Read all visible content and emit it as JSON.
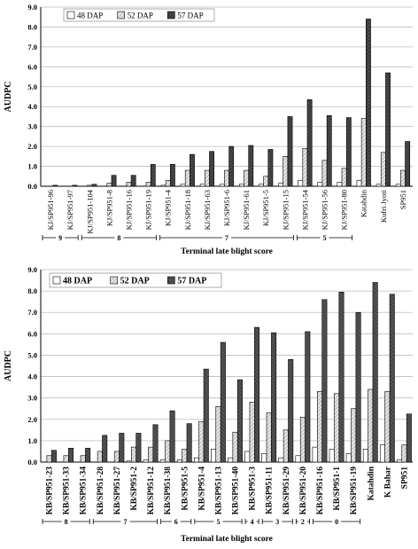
{
  "chart_data": [
    {
      "type": "bar",
      "ylabel": "AUDPC",
      "xlabel": "Terminal late blight score",
      "ylim": [
        0,
        9
      ],
      "yticks": [
        "0.0",
        "1.0",
        "2.0",
        "3.0",
        "4.0",
        "5.0",
        "6.0",
        "7.0",
        "8.0",
        "9.0"
      ],
      "grid": true,
      "legend_position": "top-left",
      "categories": [
        "KJ/SP951-96",
        "KJ/SP951-97",
        "KJ/SP951-104",
        "KJ/SP951-8",
        "KJ/SP951-16",
        "KJ/SP951-19",
        "KJ/SP951-4",
        "KJ/SP951-18",
        "KJ/SP951-63",
        "KJ/SP951-6",
        "KJ/SP951-61",
        "KJ/SP951-5",
        "KJ/SP951-15",
        "KJ/SP951-54",
        "KJ/SP951-56",
        "KJ/SP951-80",
        "Katahdin",
        "Kufri Jyoti",
        "SP951"
      ],
      "series": [
        {
          "name": "48 DAP",
          "values": [
            0.0,
            0.0,
            0.0,
            0.0,
            0.0,
            0.0,
            0.05,
            0.1,
            0.1,
            0.1,
            0.1,
            0.1,
            0.15,
            0.3,
            0.2,
            0.2,
            0.3,
            0.1,
            0.1
          ]
        },
        {
          "name": "52 DAP",
          "values": [
            0.0,
            0.0,
            0.05,
            0.15,
            0.2,
            0.2,
            0.3,
            0.8,
            0.8,
            0.8,
            0.8,
            0.5,
            1.5,
            1.9,
            1.3,
            0.9,
            3.4,
            1.7,
            0.8
          ]
        },
        {
          "name": "57 DAP",
          "values": [
            0.05,
            0.05,
            0.1,
            0.55,
            0.55,
            1.1,
            1.1,
            1.6,
            1.75,
            2.0,
            2.05,
            1.85,
            3.5,
            4.35,
            3.55,
            3.45,
            8.4,
            5.7,
            2.25
          ]
        }
      ],
      "groups": [
        {
          "label": "9",
          "from": 0,
          "to": 1
        },
        {
          "label": "8",
          "from": 2,
          "to": 5
        },
        {
          "label": "7",
          "from": 6,
          "to": 12
        },
        {
          "label": "5",
          "from": 13,
          "to": 15
        }
      ]
    },
    {
      "type": "bar",
      "ylabel": "AUDPC",
      "xlabel": "Terminal late blight score",
      "ylim": [
        0,
        9
      ],
      "yticks": [
        "0.0",
        "1.0",
        "2.0",
        "3.0",
        "4.0",
        "5.0",
        "6.0",
        "7.0",
        "8.0",
        "9.0"
      ],
      "grid": true,
      "legend_position": "top-left",
      "categories": [
        "KB/SP951-23",
        "KB/SP951-33",
        "KB/SP951-34",
        "KB/SP951-28",
        "KB/SP951-27",
        "KB/SP951-2",
        "KB/SP951-12",
        "KB/SP951-38",
        "KB/SP951-5",
        "KB/SP951-4",
        "KB/SP951-13",
        "KB/SP951-40",
        "KB/SP951-3",
        "KB/SP951-11",
        "KB/SP951-29",
        "KB/SP951-20",
        "KB/SP951-16",
        "KB/SP951-1",
        "KB/SP951-19",
        "Katahdin",
        "K Bahar",
        "SP951"
      ],
      "series": [
        {
          "name": "48 DAP",
          "values": [
            0.0,
            0.0,
            0.0,
            0.0,
            0.0,
            0.05,
            0.1,
            0.1,
            0.1,
            0.2,
            0.6,
            0.2,
            0.5,
            0.4,
            0.2,
            0.3,
            0.7,
            0.6,
            0.4,
            0.6,
            0.8,
            0.1
          ]
        },
        {
          "name": "52 DAP",
          "values": [
            0.3,
            0.3,
            0.3,
            0.5,
            0.5,
            0.7,
            0.7,
            1.0,
            0.6,
            1.9,
            2.6,
            1.4,
            2.8,
            2.3,
            1.5,
            2.1,
            3.3,
            3.2,
            2.5,
            3.4,
            3.3,
            0.8
          ]
        },
        {
          "name": "57 DAP",
          "values": [
            0.55,
            0.65,
            0.65,
            1.25,
            1.35,
            1.35,
            1.75,
            2.4,
            1.8,
            4.35,
            5.6,
            3.85,
            6.3,
            6.05,
            4.8,
            6.1,
            7.6,
            7.95,
            7.0,
            8.4,
            7.85,
            2.25
          ]
        }
      ],
      "groups": [
        {
          "label": "8",
          "from": 0,
          "to": 2
        },
        {
          "label": "7",
          "from": 3,
          "to": 6
        },
        {
          "label": "6",
          "from": 7,
          "to": 8
        },
        {
          "label": "5",
          "from": 9,
          "to": 11
        },
        {
          "label": "4",
          "from": 12,
          "to": 12
        },
        {
          "label": "3",
          "from": 13,
          "to": 14
        },
        {
          "label": "2",
          "from": 15,
          "to": 15
        },
        {
          "label": "0",
          "from": 16,
          "to": 18
        }
      ]
    }
  ]
}
